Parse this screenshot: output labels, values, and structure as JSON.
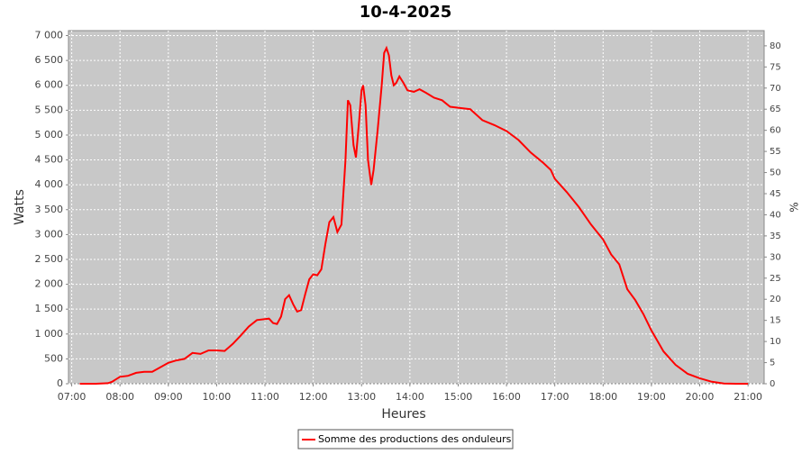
{
  "chart_data": {
    "type": "line",
    "title": "10-4-2025",
    "xlabel": "Heures",
    "ylabel": "Watts",
    "y2label": "%",
    "x": [
      "07:10",
      "07:30",
      "07:45",
      "07:50",
      "08:00",
      "08:10",
      "08:20",
      "08:30",
      "08:40",
      "08:50",
      "09:00",
      "09:10",
      "09:20",
      "09:30",
      "09:40",
      "09:50",
      "10:00",
      "10:10",
      "10:20",
      "10:30",
      "10:40",
      "10:50",
      "11:00",
      "11:05",
      "11:10",
      "11:15",
      "11:20",
      "11:25",
      "11:30",
      "11:35",
      "11:40",
      "11:45",
      "11:50",
      "11:55",
      "12:00",
      "12:05",
      "12:10",
      "12:15",
      "12:20",
      "12:25",
      "12:30",
      "12:35",
      "12:40",
      "12:43",
      "12:46",
      "12:50",
      "12:53",
      "12:57",
      "13:00",
      "13:02",
      "13:05",
      "13:08",
      "13:12",
      "13:15",
      "13:20",
      "13:25",
      "13:28",
      "13:31",
      "13:34",
      "13:37",
      "13:40",
      "13:43",
      "13:47",
      "13:52",
      "13:57",
      "14:05",
      "14:12",
      "14:20",
      "14:30",
      "14:40",
      "14:50",
      "15:00",
      "15:15",
      "15:30",
      "15:45",
      "16:00",
      "16:15",
      "16:30",
      "16:45",
      "16:55",
      "17:00",
      "17:15",
      "17:30",
      "17:45",
      "18:00",
      "18:10",
      "18:20",
      "18:30",
      "18:40",
      "18:50",
      "19:00",
      "19:15",
      "19:30",
      "19:45",
      "20:00",
      "20:15",
      "20:30",
      "20:45",
      "21:00"
    ],
    "series": [
      {
        "name": "Somme des productions des onduleurs",
        "color": "#ff0000",
        "values": [
          0,
          0,
          10,
          40,
          140,
          160,
          220,
          240,
          240,
          330,
          420,
          470,
          500,
          620,
          600,
          670,
          670,
          660,
          800,
          970,
          1150,
          1280,
          1300,
          1310,
          1220,
          1200,
          1350,
          1700,
          1780,
          1600,
          1450,
          1480,
          1800,
          2100,
          2200,
          2180,
          2300,
          2800,
          3250,
          3350,
          3050,
          3200,
          4500,
          5700,
          5600,
          4800,
          4550,
          5300,
          5900,
          6000,
          5600,
          4500,
          4000,
          4300,
          5100,
          6000,
          6650,
          6750,
          6600,
          6200,
          6000,
          6050,
          6180,
          6050,
          5900,
          5870,
          5920,
          5850,
          5750,
          5700,
          5570,
          5550,
          5520,
          5300,
          5200,
          5080,
          4900,
          4650,
          4450,
          4300,
          4120,
          3850,
          3550,
          3200,
          2900,
          2600,
          2400,
          1900,
          1680,
          1400,
          1070,
          650,
          380,
          200,
          110,
          40,
          5,
          0,
          0
        ]
      }
    ],
    "xlim": [
      "06:56",
      "21:20"
    ],
    "xticks": [
      "07:00",
      "08:00",
      "09:00",
      "10:00",
      "11:00",
      "12:00",
      "13:00",
      "14:00",
      "15:00",
      "16:00",
      "17:00",
      "18:00",
      "19:00",
      "20:00",
      "21:00"
    ],
    "ylim": [
      0,
      7100
    ],
    "yticks": [
      0,
      500,
      {
        "value": 1000,
        "label": "1 000"
      },
      {
        "value": 1500,
        "label": "1 500"
      },
      {
        "value": 2000,
        "label": "2 000"
      },
      {
        "value": 2500,
        "label": "2 500"
      },
      {
        "value": 3000,
        "label": "3 000"
      },
      {
        "value": 3500,
        "label": "3 500"
      },
      {
        "value": 4000,
        "label": "4 000"
      },
      {
        "value": 4500,
        "label": "4 500"
      },
      {
        "value": 5000,
        "label": "5 000"
      },
      {
        "value": 5500,
        "label": "5 500"
      },
      {
        "value": 6000,
        "label": "6 000"
      },
      {
        "value": 6500,
        "label": "6 500"
      },
      {
        "value": 7000,
        "label": "7 000"
      }
    ],
    "y2lim": [
      0,
      83.6
    ],
    "y2ticks": [
      0,
      5,
      10,
      15,
      20,
      25,
      30,
      35,
      40,
      45,
      50,
      55,
      60,
      65,
      70,
      75,
      80
    ],
    "grid": true,
    "legend": "bottom"
  }
}
